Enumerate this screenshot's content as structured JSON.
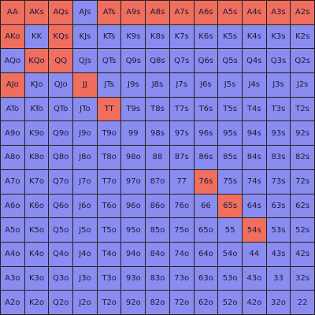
{
  "colors": {
    "raise": "#f06e5e",
    "fold": "#8a8cf0",
    "grid_line": "#222222",
    "text": "#1a1a3a"
  },
  "range_grid": {
    "rows": [
      [
        {
          "hand": "AA",
          "action": "raise"
        },
        {
          "hand": "AKs",
          "action": "raise"
        },
        {
          "hand": "AQs",
          "action": "raise"
        },
        {
          "hand": "AJs",
          "action": "fold"
        },
        {
          "hand": "ATs",
          "action": "raise"
        },
        {
          "hand": "A9s",
          "action": "raise"
        },
        {
          "hand": "A8s",
          "action": "raise"
        },
        {
          "hand": "A7s",
          "action": "raise"
        },
        {
          "hand": "A6s",
          "action": "raise"
        },
        {
          "hand": "A5s",
          "action": "raise"
        },
        {
          "hand": "A4s",
          "action": "raise"
        },
        {
          "hand": "A3s",
          "action": "raise"
        },
        {
          "hand": "A2s",
          "action": "raise"
        }
      ],
      [
        {
          "hand": "AKo",
          "action": "raise"
        },
        {
          "hand": "KK",
          "action": "fold"
        },
        {
          "hand": "KQs",
          "action": "raise"
        },
        {
          "hand": "KJs",
          "action": "fold"
        },
        {
          "hand": "KTs",
          "action": "fold"
        },
        {
          "hand": "K9s",
          "action": "fold"
        },
        {
          "hand": "K8s",
          "action": "fold"
        },
        {
          "hand": "K7s",
          "action": "fold"
        },
        {
          "hand": "K6s",
          "action": "fold"
        },
        {
          "hand": "K5s",
          "action": "fold"
        },
        {
          "hand": "K4s",
          "action": "fold"
        },
        {
          "hand": "K3s",
          "action": "fold"
        },
        {
          "hand": "K2s",
          "action": "fold"
        }
      ],
      [
        {
          "hand": "AQo",
          "action": "fold"
        },
        {
          "hand": "KQo",
          "action": "raise"
        },
        {
          "hand": "QQ",
          "action": "raise"
        },
        {
          "hand": "QJs",
          "action": "fold"
        },
        {
          "hand": "QTs",
          "action": "fold"
        },
        {
          "hand": "Q9s",
          "action": "fold"
        },
        {
          "hand": "Q8s",
          "action": "fold"
        },
        {
          "hand": "Q7s",
          "action": "fold"
        },
        {
          "hand": "Q6s",
          "action": "fold"
        },
        {
          "hand": "Q5s",
          "action": "fold"
        },
        {
          "hand": "Q4s",
          "action": "fold"
        },
        {
          "hand": "Q3s",
          "action": "fold"
        },
        {
          "hand": "Q2s",
          "action": "fold"
        }
      ],
      [
        {
          "hand": "AJo",
          "action": "raise"
        },
        {
          "hand": "KJo",
          "action": "fold"
        },
        {
          "hand": "QJo",
          "action": "fold"
        },
        {
          "hand": "JJ",
          "action": "raise"
        },
        {
          "hand": "JTs",
          "action": "fold"
        },
        {
          "hand": "J9s",
          "action": "fold"
        },
        {
          "hand": "J8s",
          "action": "fold"
        },
        {
          "hand": "J7s",
          "action": "fold"
        },
        {
          "hand": "J6s",
          "action": "fold"
        },
        {
          "hand": "J5s",
          "action": "fold"
        },
        {
          "hand": "J4s",
          "action": "fold"
        },
        {
          "hand": "J3s",
          "action": "fold"
        },
        {
          "hand": "J2s",
          "action": "fold"
        }
      ],
      [
        {
          "hand": "ATo",
          "action": "fold"
        },
        {
          "hand": "KTo",
          "action": "fold"
        },
        {
          "hand": "QTo",
          "action": "fold"
        },
        {
          "hand": "JTo",
          "action": "fold"
        },
        {
          "hand": "TT",
          "action": "raise"
        },
        {
          "hand": "T9s",
          "action": "fold"
        },
        {
          "hand": "T8s",
          "action": "fold"
        },
        {
          "hand": "T7s",
          "action": "fold"
        },
        {
          "hand": "T6s",
          "action": "fold"
        },
        {
          "hand": "T5s",
          "action": "fold"
        },
        {
          "hand": "T4s",
          "action": "fold"
        },
        {
          "hand": "T3s",
          "action": "fold"
        },
        {
          "hand": "T2s",
          "action": "fold"
        }
      ],
      [
        {
          "hand": "A9o",
          "action": "fold"
        },
        {
          "hand": "K9o",
          "action": "fold"
        },
        {
          "hand": "Q9o",
          "action": "fold"
        },
        {
          "hand": "J9o",
          "action": "fold"
        },
        {
          "hand": "T9o",
          "action": "fold"
        },
        {
          "hand": "99",
          "action": "fold"
        },
        {
          "hand": "98s",
          "action": "fold"
        },
        {
          "hand": "97s",
          "action": "fold"
        },
        {
          "hand": "96s",
          "action": "fold"
        },
        {
          "hand": "95s",
          "action": "fold"
        },
        {
          "hand": "94s",
          "action": "fold"
        },
        {
          "hand": "93s",
          "action": "fold"
        },
        {
          "hand": "92s",
          "action": "fold"
        }
      ],
      [
        {
          "hand": "A8o",
          "action": "fold"
        },
        {
          "hand": "K8o",
          "action": "fold"
        },
        {
          "hand": "Q8o",
          "action": "fold"
        },
        {
          "hand": "J8o",
          "action": "fold"
        },
        {
          "hand": "T8o",
          "action": "fold"
        },
        {
          "hand": "98o",
          "action": "fold"
        },
        {
          "hand": "88",
          "action": "fold"
        },
        {
          "hand": "87s",
          "action": "fold"
        },
        {
          "hand": "86s",
          "action": "fold"
        },
        {
          "hand": "85s",
          "action": "fold"
        },
        {
          "hand": "84s",
          "action": "fold"
        },
        {
          "hand": "83s",
          "action": "fold"
        },
        {
          "hand": "82s",
          "action": "fold"
        }
      ],
      [
        {
          "hand": "A7o",
          "action": "fold"
        },
        {
          "hand": "K7o",
          "action": "fold"
        },
        {
          "hand": "Q7o",
          "action": "fold"
        },
        {
          "hand": "J7o",
          "action": "fold"
        },
        {
          "hand": "T7o",
          "action": "fold"
        },
        {
          "hand": "97o",
          "action": "fold"
        },
        {
          "hand": "87o",
          "action": "fold"
        },
        {
          "hand": "77",
          "action": "fold"
        },
        {
          "hand": "76s",
          "action": "raise"
        },
        {
          "hand": "75s",
          "action": "fold"
        },
        {
          "hand": "74s",
          "action": "fold"
        },
        {
          "hand": "73s",
          "action": "fold"
        },
        {
          "hand": "72s",
          "action": "fold"
        }
      ],
      [
        {
          "hand": "A6o",
          "action": "fold"
        },
        {
          "hand": "K6o",
          "action": "fold"
        },
        {
          "hand": "Q6o",
          "action": "fold"
        },
        {
          "hand": "J6o",
          "action": "fold"
        },
        {
          "hand": "T6o",
          "action": "fold"
        },
        {
          "hand": "96o",
          "action": "fold"
        },
        {
          "hand": "86o",
          "action": "fold"
        },
        {
          "hand": "76o",
          "action": "fold"
        },
        {
          "hand": "66",
          "action": "fold"
        },
        {
          "hand": "65s",
          "action": "raise"
        },
        {
          "hand": "64s",
          "action": "fold"
        },
        {
          "hand": "63s",
          "action": "fold"
        },
        {
          "hand": "62s",
          "action": "fold"
        }
      ],
      [
        {
          "hand": "A5o",
          "action": "fold"
        },
        {
          "hand": "K5o",
          "action": "fold"
        },
        {
          "hand": "Q5o",
          "action": "fold"
        },
        {
          "hand": "J5o",
          "action": "fold"
        },
        {
          "hand": "T5o",
          "action": "fold"
        },
        {
          "hand": "95o",
          "action": "fold"
        },
        {
          "hand": "85o",
          "action": "fold"
        },
        {
          "hand": "75o",
          "action": "fold"
        },
        {
          "hand": "65o",
          "action": "fold"
        },
        {
          "hand": "55",
          "action": "fold"
        },
        {
          "hand": "54s",
          "action": "raise"
        },
        {
          "hand": "53s",
          "action": "fold"
        },
        {
          "hand": "52s",
          "action": "fold"
        }
      ],
      [
        {
          "hand": "A4o",
          "action": "fold"
        },
        {
          "hand": "K4o",
          "action": "fold"
        },
        {
          "hand": "Q4o",
          "action": "fold"
        },
        {
          "hand": "J4o",
          "action": "fold"
        },
        {
          "hand": "T4o",
          "action": "fold"
        },
        {
          "hand": "94o",
          "action": "fold"
        },
        {
          "hand": "84o",
          "action": "fold"
        },
        {
          "hand": "74o",
          "action": "fold"
        },
        {
          "hand": "64o",
          "action": "fold"
        },
        {
          "hand": "54o",
          "action": "fold"
        },
        {
          "hand": "44",
          "action": "fold"
        },
        {
          "hand": "43s",
          "action": "fold"
        },
        {
          "hand": "42s",
          "action": "fold"
        }
      ],
      [
        {
          "hand": "A3o",
          "action": "fold"
        },
        {
          "hand": "K3o",
          "action": "fold"
        },
        {
          "hand": "Q3o",
          "action": "fold"
        },
        {
          "hand": "J3o",
          "action": "fold"
        },
        {
          "hand": "T3o",
          "action": "fold"
        },
        {
          "hand": "93o",
          "action": "fold"
        },
        {
          "hand": "83o",
          "action": "fold"
        },
        {
          "hand": "73o",
          "action": "fold"
        },
        {
          "hand": "63o",
          "action": "fold"
        },
        {
          "hand": "53o",
          "action": "fold"
        },
        {
          "hand": "43o",
          "action": "fold"
        },
        {
          "hand": "33",
          "action": "fold"
        },
        {
          "hand": "32s",
          "action": "fold"
        }
      ],
      [
        {
          "hand": "A2o",
          "action": "fold"
        },
        {
          "hand": "K2o",
          "action": "fold"
        },
        {
          "hand": "Q2o",
          "action": "fold"
        },
        {
          "hand": "J2o",
          "action": "fold"
        },
        {
          "hand": "T2o",
          "action": "fold"
        },
        {
          "hand": "92o",
          "action": "fold"
        },
        {
          "hand": "82o",
          "action": "fold"
        },
        {
          "hand": "72o",
          "action": "fold"
        },
        {
          "hand": "62o",
          "action": "fold"
        },
        {
          "hand": "52o",
          "action": "fold"
        },
        {
          "hand": "42o",
          "action": "fold"
        },
        {
          "hand": "32o",
          "action": "fold"
        },
        {
          "hand": "22",
          "action": "fold"
        }
      ]
    ]
  }
}
